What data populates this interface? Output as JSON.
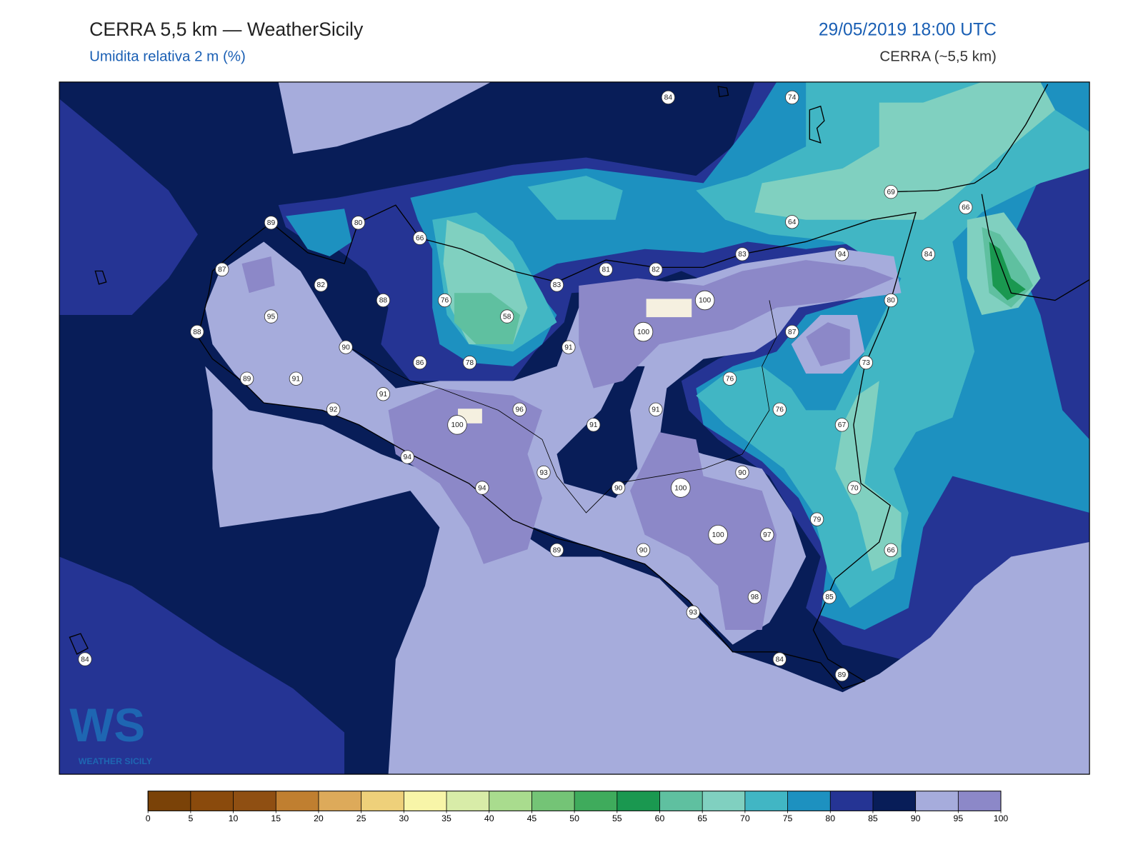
{
  "header": {
    "title": "CERRA 5,5 km — WeatherSicily",
    "subtitle": "Umidita relativa 2 m (%)",
    "datetime": "29/05/2019 18:00 UTC",
    "model": "CERRA (~5,5 km)"
  },
  "stations": [
    84,
    74,
    69,
    66,
    64,
    89,
    80,
    66,
    83,
    94,
    84,
    87,
    81,
    82,
    82,
    83,
    88,
    76,
    100,
    80,
    95,
    58,
    100,
    88,
    87,
    90,
    91,
    86,
    78,
    73,
    89,
    91,
    76,
    91,
    92,
    96,
    91,
    76,
    100,
    91,
    67,
    94,
    93,
    90,
    94,
    90,
    100,
    70,
    79,
    100,
    97,
    89,
    90,
    66,
    98,
    85,
    93,
    84,
    89,
    84
  ],
  "colorbar": {
    "ticks": [
      0,
      5,
      10,
      15,
      20,
      25,
      30,
      35,
      40,
      45,
      50,
      55,
      60,
      65,
      70,
      75,
      80,
      85,
      90,
      95,
      100
    ],
    "colors": [
      "#7a4208",
      "#8a4a0c",
      "#8f4f12",
      "#c07f30",
      "#ddaa5a",
      "#eed07a",
      "#f8f5a8",
      "#d8eca8",
      "#a9dc8e",
      "#74c476",
      "#3fab5c",
      "#1a9850",
      "#5fc0a0",
      "#80d0c0",
      "#41b6c4",
      "#1d91c0",
      "#253494",
      "#081d58",
      "#a6acdc",
      "#8c88c8"
    ]
  },
  "logo": {
    "mark": "WS",
    "text": "WEATHER SICILY"
  }
}
